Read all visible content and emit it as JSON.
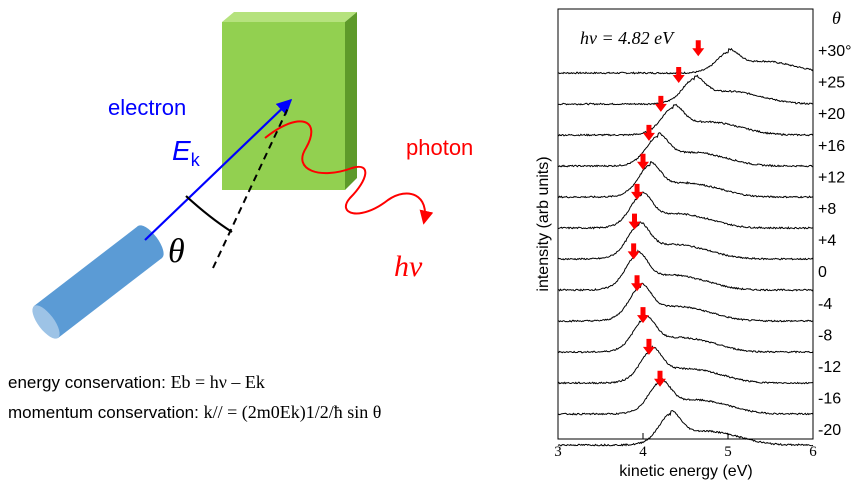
{
  "diagram": {
    "electron_label": "electron",
    "ek_label": "E",
    "ek_sub": "k",
    "photon_label": "photon",
    "hnu_label": "hν",
    "theta_label": "θ",
    "colors": {
      "sample": "#92d050",
      "sample_side": "#5e9a2a",
      "sample_top": "#b5e27d",
      "analyzer": "#5b9bd5",
      "electron": "#0000ff",
      "photon": "#ff0000"
    }
  },
  "equations": {
    "energy_label": "energy conservation:",
    "energy_formula": "Eb = hν – Ek",
    "momentum_label": "momentum conservation:",
    "momentum_formula": "k// = (2m0Ek)1/2/ħ sin θ"
  },
  "chart_data": {
    "type": "line",
    "annotation": "hν = 4.82 eV",
    "xlabel": "kinetic energy (eV)",
    "ylabel": "intensity (arb units)",
    "xlim": [
      3,
      6
    ],
    "xticks": [
      3,
      4,
      5,
      6
    ],
    "angle_header": "θ",
    "series": [
      {
        "name": "+30°",
        "peak": 5.0,
        "arrow": 4.65,
        "amp": 0.45
      },
      {
        "name": "+25",
        "peak": 4.6,
        "arrow": 4.42,
        "amp": 0.55
      },
      {
        "name": "+20",
        "peak": 4.35,
        "arrow": 4.21,
        "amp": 0.6
      },
      {
        "name": "+16",
        "peak": 4.17,
        "arrow": 4.07,
        "amp": 0.65
      },
      {
        "name": "+12",
        "peak": 4.08,
        "arrow": 4.0,
        "amp": 0.7
      },
      {
        "name": "+8",
        "peak": 3.98,
        "arrow": 3.93,
        "amp": 0.72
      },
      {
        "name": "+4",
        "peak": 3.95,
        "arrow": 3.9,
        "amp": 0.75
      },
      {
        "name": "0",
        "peak": 3.93,
        "arrow": 3.89,
        "amp": 0.78
      },
      {
        "name": "-4",
        "peak": 3.97,
        "arrow": 3.93,
        "amp": 0.76
      },
      {
        "name": "-8",
        "peak": 4.02,
        "arrow": 4.0,
        "amp": 0.74
      },
      {
        "name": "-12",
        "peak": 4.1,
        "arrow": 4.07,
        "amp": 0.72
      },
      {
        "name": "-16",
        "peak": 4.2,
        "arrow": 4.2,
        "amp": 0.7
      },
      {
        "name": "-20",
        "peak": 4.32,
        "arrow": null,
        "amp": 0.68
      }
    ]
  }
}
